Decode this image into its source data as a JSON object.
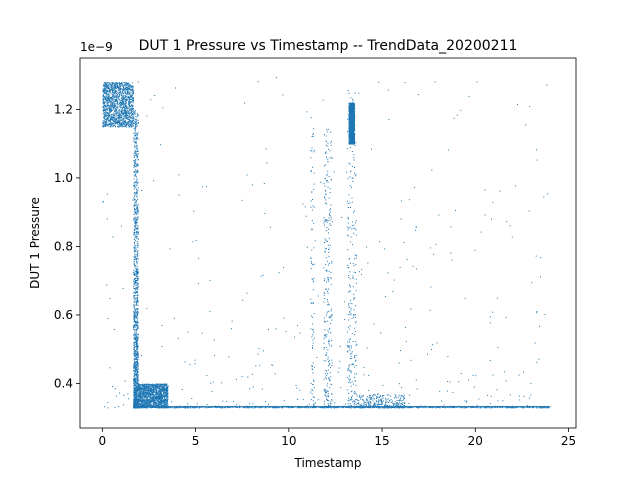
{
  "chart_data": {
    "type": "scatter",
    "title": "DUT 1 Pressure vs Timestamp -- TrendData_20200211",
    "xlabel": "Timestamp",
    "ylabel": "DUT 1 Pressure",
    "y_offset_label": "1e−9",
    "xlim": [
      -1.2,
      25.4
    ],
    "ylim": [
      0.27,
      1.35
    ],
    "x_ticks": [
      0,
      5,
      10,
      15,
      20,
      25
    ],
    "x_tick_labels": [
      "0",
      "5",
      "10",
      "15",
      "20",
      "25"
    ],
    "y_ticks": [
      0.4,
      0.6,
      0.8,
      1.0,
      1.2
    ],
    "y_tick_labels": [
      "0.4",
      "0.6",
      "0.8",
      "1.0",
      "1.2"
    ],
    "grid": false,
    "marker_color": "#1f77b4",
    "series": [
      {
        "description_of_regions": "density clusters estimated from the plot",
        "regions": [
          {
            "x": [
              0.0,
              1.65
            ],
            "y": [
              1.15,
              1.28
            ],
            "density": "dense"
          },
          {
            "x": [
              1.65,
              1.9
            ],
            "y": [
              0.33,
              1.2
            ],
            "density": "dense"
          },
          {
            "x": [
              1.9,
              3.5
            ],
            "y": [
              0.33,
              0.4
            ],
            "density": "dense"
          },
          {
            "x": [
              11.15,
              11.35
            ],
            "y": [
              0.33,
              1.18
            ],
            "density": "line"
          },
          {
            "x": [
              11.85,
              12.3
            ],
            "y": [
              0.33,
              1.15
            ],
            "density": "medium"
          },
          {
            "x": [
              13.1,
              13.6
            ],
            "y": [
              0.33,
              1.26
            ],
            "density": "medium"
          },
          {
            "x": [
              13.2,
              13.5
            ],
            "y": [
              1.1,
              1.22
            ],
            "density": "dense"
          },
          {
            "x": [
              13.6,
              16.2
            ],
            "y": [
              0.33,
              0.37
            ],
            "density": "medium"
          },
          {
            "x": [
              1.9,
              24.0
            ],
            "y": [
              0.33,
              0.335
            ],
            "density": "baseline"
          },
          {
            "x": [
              0.0,
              24.0
            ],
            "y": [
              0.33,
              1.3
            ],
            "density": "sparse"
          }
        ]
      }
    ]
  }
}
